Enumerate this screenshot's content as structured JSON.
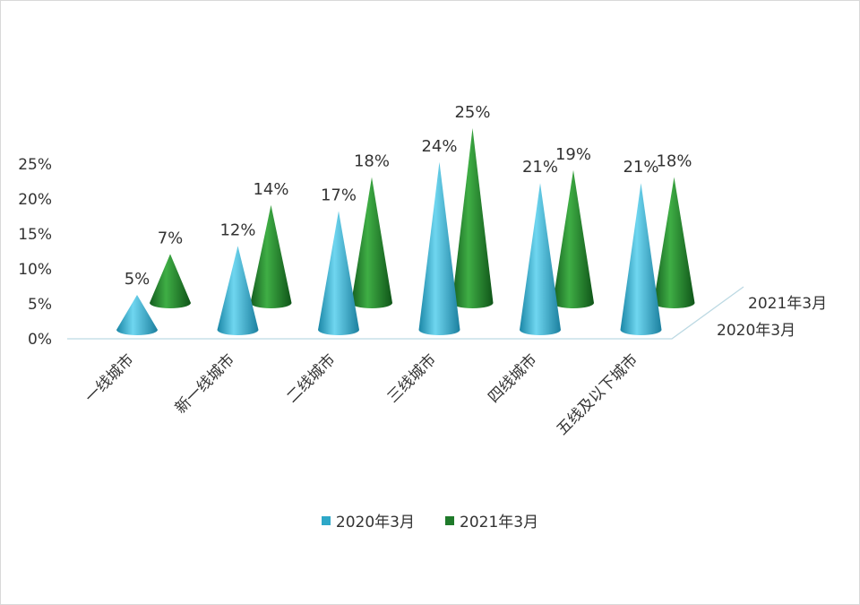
{
  "chart_data": {
    "type": "bar",
    "style": "3d-cone",
    "categories": [
      "一线城市",
      "新一线城市",
      "二线城市",
      "三线城市",
      "四线城市",
      "五线及以下城市"
    ],
    "series": [
      {
        "name": "2020年3月",
        "values": [
          5,
          12,
          17,
          24,
          21,
          21
        ],
        "labels": [
          "5%",
          "12%",
          "17%",
          "24%",
          "21%",
          "21%"
        ],
        "color": "#2ea8c8"
      },
      {
        "name": "2021年3月",
        "values": [
          7,
          14,
          18,
          25,
          19,
          18
        ],
        "labels": [
          "7%",
          "14%",
          "18%",
          "25%",
          "19%",
          "18%"
        ],
        "color": "#1f7a2a"
      }
    ],
    "yticks": [
      "0%",
      "5%",
      "10%",
      "15%",
      "20%",
      "25%"
    ],
    "ylim": [
      0,
      25
    ],
    "depth_labels": [
      "2020年3月",
      "2021年3月"
    ],
    "legend": "bottom"
  }
}
